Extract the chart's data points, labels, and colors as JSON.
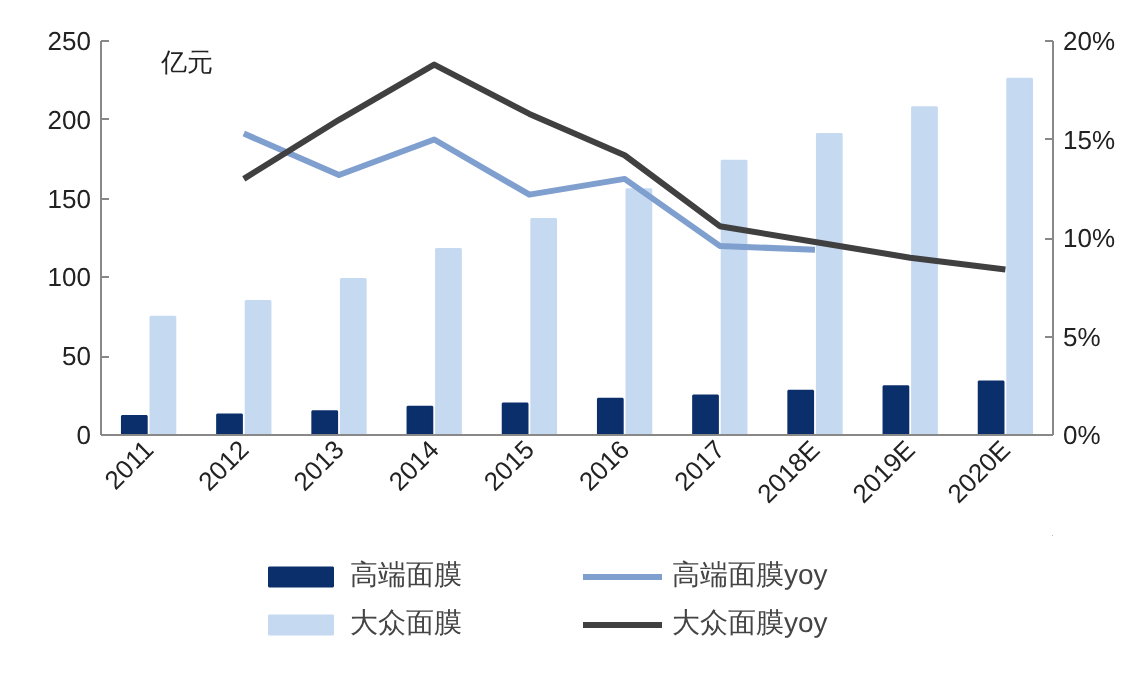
{
  "chart_data": {
    "type": "bar",
    "ylabel": "亿元",
    "categories": [
      "2011",
      "2012",
      "2013",
      "2014",
      "2015",
      "2016",
      "2017",
      "2018E",
      "2019E",
      "2020E"
    ],
    "series": [
      {
        "name": "高端面膜",
        "color": "#0b2f6b",
        "values": [
          12,
          13,
          15,
          18,
          20,
          23,
          25,
          28,
          31,
          34
        ]
      },
      {
        "name": "大众面膜",
        "color": "#c5d9f1",
        "values": [
          75,
          85,
          99,
          118,
          137,
          156,
          174,
          191,
          208,
          226
        ]
      },
      {
        "name": "高端面膜yoy",
        "type": "line",
        "axis": "y2",
        "color": "#7f9fcf",
        "values": [
          null,
          15.3,
          13.2,
          15.0,
          12.2,
          13.0,
          9.6,
          9.4,
          null,
          null
        ]
      },
      {
        "name": "大众面膜yoy",
        "type": "line",
        "axis": "y2",
        "color": "#404040",
        "values": [
          null,
          13.0,
          16.0,
          18.8,
          16.3,
          14.2,
          10.6,
          9.8,
          9.0,
          8.4
        ]
      }
    ],
    "ylim": [
      0,
      250
    ],
    "yticks": [
      0,
      50,
      100,
      150,
      200,
      250
    ],
    "y2lim": [
      0,
      20
    ],
    "y2ticks": [
      {
        "value": 0,
        "label": "0%"
      },
      {
        "value": 5,
        "label": "5%"
      },
      {
        "value": 10,
        "label": "10%"
      },
      {
        "value": 15,
        "label": "15%"
      },
      {
        "value": 20,
        "label": "20%"
      }
    ],
    "grid": false,
    "legend": "bottom"
  }
}
